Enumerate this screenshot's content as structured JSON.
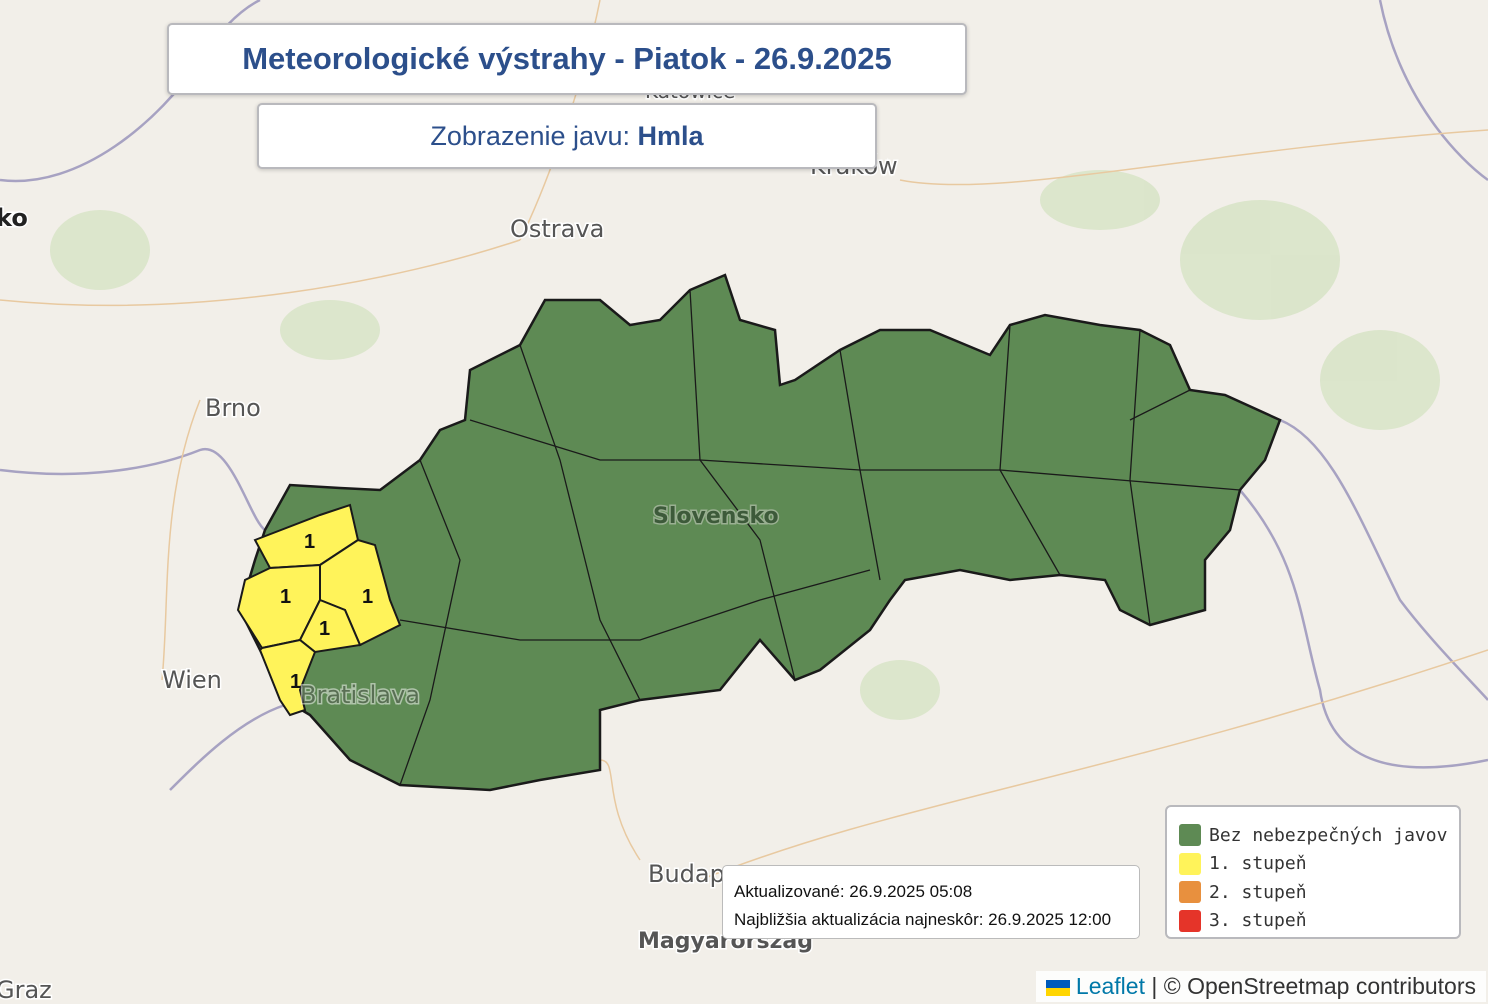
{
  "title": "Meteorologické výstrahy - Piatok - 26.9.2025",
  "subtitle": {
    "label": "Zobrazenie javu:",
    "value": "Hmla"
  },
  "colors": {
    "none": "#5e8a54",
    "level1": "#fff35a",
    "level2": "#e8903e",
    "level3": "#e53429",
    "title": "#2c4f8b"
  },
  "map_labels": {
    "ostrava": "Ostrava",
    "brno": "Brno",
    "wien": "Wien",
    "bratislava": "Bratislava",
    "krakow": "Kraków",
    "budapest": "Budap",
    "magyarorszag": "Magyarország",
    "graz": "Graz",
    "slovensko": "Slovensko",
    "olomouc_partial": "ko",
    "katowice": "Katowice"
  },
  "warning_regions": [
    {
      "level": "1"
    },
    {
      "level": "1"
    },
    {
      "level": "1"
    },
    {
      "level": "1"
    },
    {
      "level": "1"
    }
  ],
  "update": {
    "updated": "Aktualizované: 26.9.2025 05:08",
    "next": "Najbližšia aktualizácia najneskôr: 26.9.2025 12:00"
  },
  "legend": [
    {
      "label": "Bez nebezpečných javov",
      "color": "#5e8a54"
    },
    {
      "label": "1. stupeň",
      "color": "#fff35a"
    },
    {
      "label": "2. stupeň",
      "color": "#e8903e"
    },
    {
      "label": "3. stupeň",
      "color": "#e53429"
    }
  ],
  "attribution": {
    "leaflet": "Leaflet",
    "sep": "|",
    "osm": "© OpenStreetmap contributors"
  }
}
